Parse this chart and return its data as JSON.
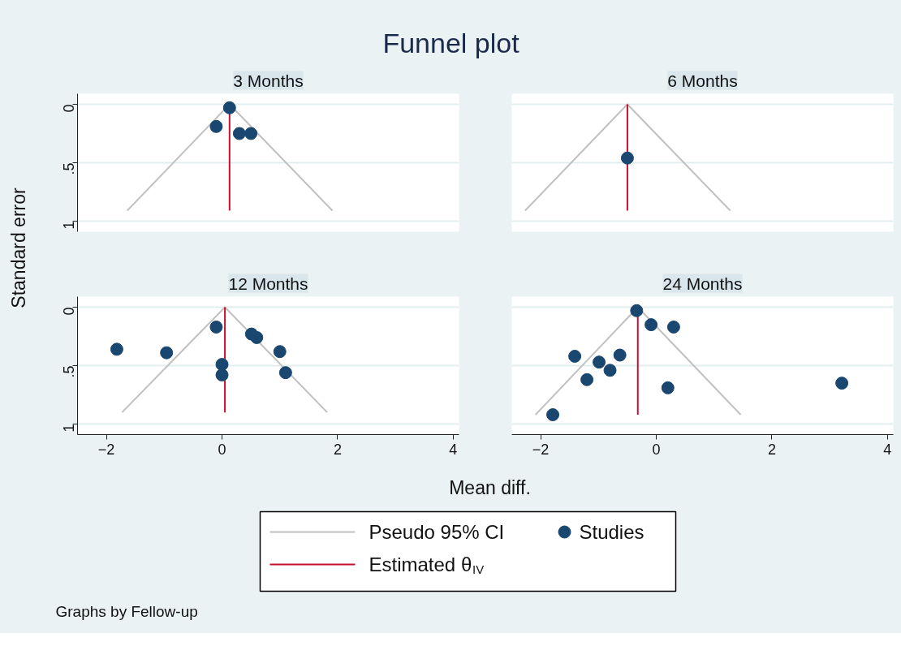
{
  "chart_data": [
    {
      "type": "scatter",
      "title": "Funnel plot",
      "subtitle": "3 Months",
      "ylabel": "Standard error",
      "xlabel": "Mean diff.",
      "annotations": [
        "Graphs by Fellow-up"
      ],
      "legend": "bottom",
      "grid": "y",
      "tick_labels": "y",
      "xlim": [
        -2.5,
        4.1
      ],
      "ylim": [
        1.09,
        -0.09
      ],
      "yticks": [
        {
          "value": 0,
          "label": "0"
        },
        {
          "value": 0.5,
          "label": ".5"
        },
        {
          "value": 1,
          "label": "1"
        }
      ],
      "series": [
        {
          "type": "line",
          "name": "Pseudo 95% CI",
          "color": "#c0c0c0",
          "x": [
            -1.64,
            0.13,
            1.91
          ],
          "values": [
            0.91,
            0,
            0.91
          ]
        },
        {
          "type": "line",
          "name": "Estimated θ$_{IV}$",
          "color": "#c8102e",
          "x": [
            0.13,
            0.13
          ],
          "values": [
            0,
            0.91
          ]
        },
        {
          "name": "Studies",
          "marker": "circle",
          "color": "#1a476f",
          "x": [
            0.13,
            -0.1,
            0.3,
            0.5
          ],
          "values": [
            0.03,
            0.19,
            0.25,
            0.25
          ]
        }
      ]
    },
    {
      "type": "scatter",
      "subtitle": "6 Months",
      "grid": "y",
      "tick_labels": false,
      "xlim": [
        -2.5,
        4.1
      ],
      "ylim": [
        1.09,
        -0.09
      ],
      "yticks": [
        {
          "value": 0,
          "label": null
        },
        {
          "value": 0.5,
          "label": null
        },
        {
          "value": 1,
          "label": null
        }
      ],
      "series": [
        {
          "type": "line",
          "color": "#c0c0c0",
          "x": [
            -2.27,
            -0.5,
            1.28
          ],
          "values": [
            0.91,
            0,
            0.91
          ]
        },
        {
          "type": "line",
          "color": "#c8102e",
          "x": [
            -0.5,
            -0.5
          ],
          "values": [
            0,
            0.91
          ]
        },
        {
          "marker": "circle",
          "color": "#1a476f",
          "x": [
            -0.5
          ],
          "values": [
            0.46
          ]
        }
      ]
    },
    {
      "type": "scatter",
      "subtitle": "12 Months",
      "grid": "y",
      "xlim": [
        -2.5,
        4.1
      ],
      "ylim": [
        1.09,
        -0.09
      ],
      "xticks": [
        -2,
        0,
        2,
        4
      ],
      "yticks": [
        {
          "value": 0,
          "label": "0"
        },
        {
          "value": 0.5,
          "label": ".5"
        },
        {
          "value": 1,
          "label": "1"
        }
      ],
      "series": [
        {
          "type": "line",
          "color": "#c0c0c0",
          "x": [
            -1.73,
            0.05,
            1.82
          ],
          "values": [
            0.9,
            0,
            0.9
          ]
        },
        {
          "type": "line",
          "color": "#c8102e",
          "x": [
            0.05,
            0.05
          ],
          "values": [
            0,
            0.9
          ]
        },
        {
          "marker": "circle",
          "color": "#1a476f",
          "x": [
            -1.82,
            -0.96,
            -0.1,
            0.51,
            0.6,
            1.0,
            0.0,
            0.0,
            1.1
          ],
          "values": [
            0.36,
            0.39,
            0.17,
            0.23,
            0.26,
            0.38,
            0.49,
            0.58,
            0.56
          ]
        }
      ]
    },
    {
      "type": "scatter",
      "subtitle": "24 Months",
      "grid": "y",
      "tick_labels": "x",
      "xlim": [
        -2.5,
        4.1
      ],
      "ylim": [
        1.09,
        -0.09
      ],
      "xticks": [
        -2,
        0,
        2,
        4
      ],
      "yticks": [
        {
          "value": 0,
          "label": null
        },
        {
          "value": 0.5,
          "label": null
        },
        {
          "value": 1,
          "label": null
        }
      ],
      "series": [
        {
          "type": "line",
          "color": "#c0c0c0",
          "x": [
            -2.09,
            -0.32,
            1.46
          ],
          "values": [
            0.92,
            0,
            0.92
          ]
        },
        {
          "type": "line",
          "color": "#c8102e",
          "x": [
            -0.32,
            -0.32
          ],
          "values": [
            0,
            0.92
          ]
        },
        {
          "marker": "circle",
          "color": "#1a476f",
          "x": [
            -0.34,
            -0.09,
            0.3,
            -1.41,
            -0.63,
            -0.99,
            -0.8,
            -1.2,
            0.2,
            3.21,
            -1.79
          ],
          "values": [
            0.03,
            0.15,
            0.17,
            0.42,
            0.41,
            0.47,
            0.54,
            0.62,
            0.69,
            0.65,
            0.92
          ]
        }
      ]
    }
  ]
}
